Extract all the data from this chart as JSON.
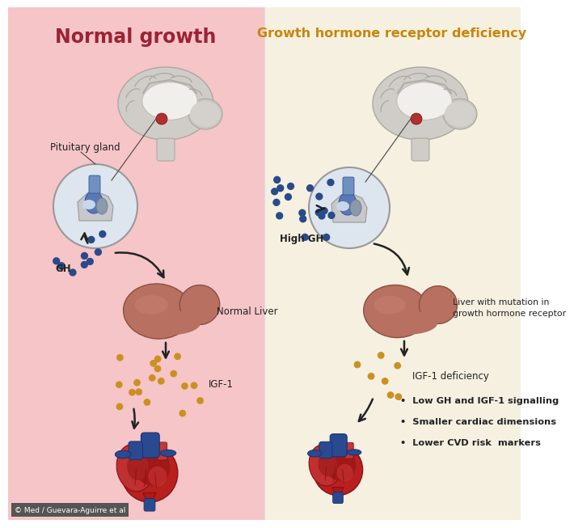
{
  "left_bg": "#f5c5c8",
  "right_bg": "#f5f0e0",
  "left_title": "Normal growth",
  "right_title": "Growth hormone receptor deficiency",
  "left_title_color": "#9b2335",
  "right_title_color": "#c8860a",
  "left_labels": {
    "pituitary": "Pituitary gland",
    "gh": "GH",
    "liver": "Normal Liver",
    "igf1": "IGF-1"
  },
  "right_labels": {
    "gh": "High GH",
    "liver": "Liver with mutation in\ngrowth hormone receptor",
    "igf1": "IGF-1 deficiency",
    "bullets": [
      "Low GH and IGF-1 signalling",
      "Smaller cardiac dimensions",
      "Lower CVD risk  markers"
    ]
  },
  "copyright": "© Med / Guevara-Aguirre et al",
  "arrow_color": "#222222",
  "liver_color": "#b87060",
  "gh_dot_color": "#2a4a8a",
  "igf1_dot_color": "#cc9020",
  "brain_outer": "#d8d5d0",
  "brain_inner": "#e8e6e0",
  "brain_white": "#f0efec",
  "pituitary_red": "#b03030",
  "pituitary_blue": "#4a6aaa",
  "heart_red": "#b52020",
  "heart_dark": "#8a1515",
  "heart_blue": "#2a4a90"
}
